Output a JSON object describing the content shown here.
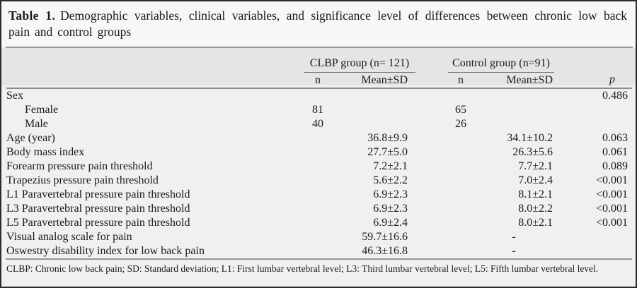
{
  "colors": {
    "frame_border": "#2b2b2b",
    "title_background": "#f7f7f5",
    "header_band_background": "#e3e5e7",
    "body_background": "#f0f0ee",
    "rule_gray": "#95989a",
    "text": "#1a1a1a"
  },
  "title": {
    "label": "Table 1.",
    "text": "Demographic variables, clinical variables, and significance level of differences between chronic low back pain and control groups"
  },
  "header": {
    "group1": "CLBP group (n= 121)",
    "group2": "Control group (n=91)",
    "n": "n",
    "mean_sd": "Mean±SD",
    "p": "p"
  },
  "rows": [
    {
      "label": "Sex",
      "n1": "",
      "m1": "",
      "n2": "",
      "m2": "",
      "p": "0.486"
    },
    {
      "label": "Female",
      "n1": "81",
      "m1": "",
      "n2": "65",
      "m2": "",
      "p": ""
    },
    {
      "label": "Male",
      "n1": "40",
      "m1": "",
      "n2": "26",
      "m2": "",
      "p": ""
    },
    {
      "label": "Age (year)",
      "n1": "",
      "m1": "36.8±9.9",
      "n2": "",
      "m2": "34.1±10.2",
      "p": "0.063"
    },
    {
      "label": "Body mass index",
      "n1": "",
      "m1": "27.7±5.0",
      "n2": "",
      "m2": "26.3±5.6",
      "p": "0.061"
    },
    {
      "label": "Forearm pressure pain threshold",
      "n1": "",
      "m1": "7.2±2.1",
      "n2": "",
      "m2": "7.7±2.1",
      "p": "0.089"
    },
    {
      "label": "Trapezius pressure pain threshold",
      "n1": "",
      "m1": "5.6±2.2",
      "n2": "",
      "m2": "7.0±2.4",
      "p": "<0.001"
    },
    {
      "label": "L1 Paravertebral pressure pain threshold",
      "n1": "",
      "m1": "6.9±2.3",
      "n2": "",
      "m2": "8.1±2.1",
      "p": "<0.001"
    },
    {
      "label": "L3 Paravertebral pressure pain threshold",
      "n1": "",
      "m1": "6.9±2.3",
      "n2": "",
      "m2": "8.0±2.2",
      "p": "<0.001"
    },
    {
      "label": "L5 Paravertebral pressure pain threshold",
      "n1": "",
      "m1": "6.9±2.4",
      "n2": "",
      "m2": "8.0±2.1",
      "p": "<0.001"
    },
    {
      "label": "Visual analog scale for pain",
      "n1": "",
      "m1": "59.7±16.6",
      "n2": "",
      "m2": "-",
      "p": ""
    },
    {
      "label": "Oswestry disability index for low back pain",
      "n1": "",
      "m1": "46.3±16.8",
      "n2": "",
      "m2": "-",
      "p": ""
    }
  ],
  "footnote": "CLBP: Chronic low back pain; SD: Standard deviation; L1: First lumbar vertebral level; L3: Third lumbar vertebral level; L5: Fifth lumbar vertebral level."
}
